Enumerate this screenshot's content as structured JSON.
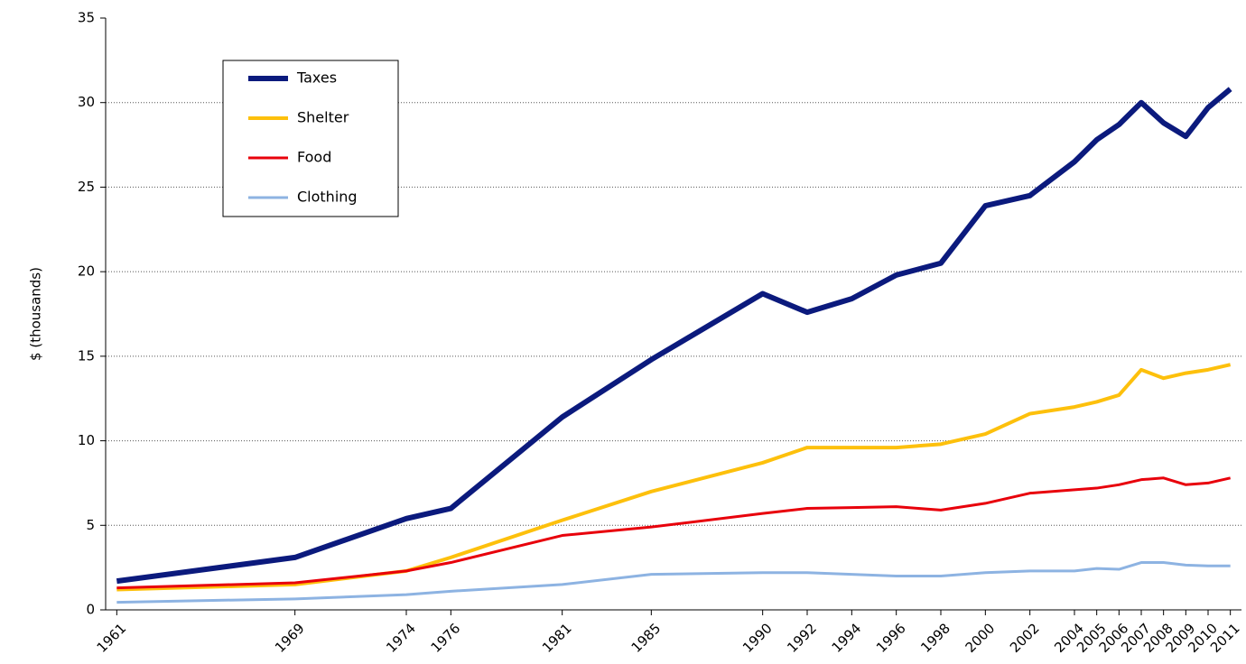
{
  "chart_data": {
    "type": "line",
    "y_label": "$ (thousands)",
    "x": [
      1961,
      1969,
      1974,
      1976,
      1981,
      1985,
      1990,
      1992,
      1994,
      1996,
      1998,
      2000,
      2002,
      2004,
      2005,
      2006,
      2007,
      2008,
      2009,
      2010,
      2011
    ],
    "xlim": [
      1960.5,
      2011.5
    ],
    "xticks": [
      1961,
      1969,
      1974,
      1976,
      1981,
      1985,
      1990,
      1992,
      1994,
      1996,
      1998,
      2000,
      2002,
      2004,
      2005,
      2006,
      2007,
      2008,
      2009,
      2010,
      2011
    ],
    "ylim": [
      0,
      35
    ],
    "yticks": [
      0,
      5,
      10,
      15,
      20,
      25,
      30,
      35
    ],
    "grid": true,
    "legend": "upper left",
    "series": [
      {
        "name": "Taxes",
        "color": "#0b1a7d",
        "width": 6,
        "values": [
          1.7,
          3.1,
          5.4,
          6.0,
          11.4,
          14.8,
          18.7,
          17.6,
          18.4,
          19.8,
          20.5,
          23.9,
          24.5,
          26.5,
          27.8,
          28.7,
          30.0,
          28.8,
          28.0,
          29.7,
          30.8
        ]
      },
      {
        "name": "Shelter",
        "color": "#fdc00c",
        "width": 4,
        "values": [
          1.2,
          1.5,
          2.3,
          3.1,
          5.3,
          7.0,
          8.7,
          9.6,
          9.6,
          9.6,
          9.8,
          10.4,
          11.6,
          12.0,
          12.3,
          12.7,
          14.2,
          13.7,
          14.0,
          14.2,
          14.5
        ]
      },
      {
        "name": "Food",
        "color": "#e8000b",
        "width": 3,
        "values": [
          1.3,
          1.6,
          2.3,
          2.8,
          4.4,
          4.9,
          5.7,
          6.0,
          6.05,
          6.1,
          5.9,
          6.3,
          6.9,
          7.1,
          7.2,
          7.4,
          7.7,
          7.8,
          7.4,
          7.5,
          7.8
        ]
      },
      {
        "name": "Clothing",
        "color": "#8db3e2",
        "width": 3,
        "values": [
          0.45,
          0.65,
          0.9,
          1.1,
          1.5,
          2.1,
          2.2,
          2.2,
          2.1,
          2.0,
          2.0,
          2.2,
          2.3,
          2.3,
          2.45,
          2.4,
          2.8,
          2.8,
          2.65,
          2.6,
          2.6
        ]
      }
    ]
  }
}
